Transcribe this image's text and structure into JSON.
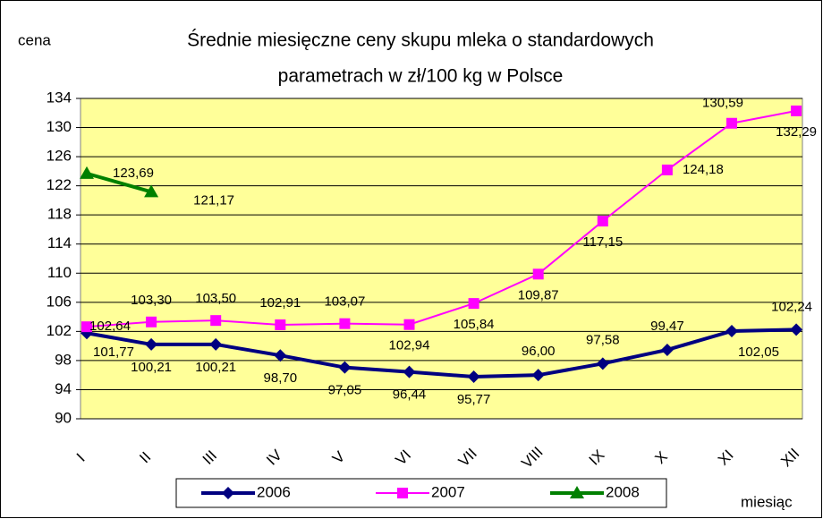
{
  "chart_data": {
    "type": "line",
    "title": "Średnie miesięczne ceny skupu mleka o standardowych",
    "subtitle": "parametrach w zł/100 kg w Polsce",
    "y_label": "cena",
    "x_label": "miesiąc",
    "categories": [
      "I",
      "II",
      "III",
      "IV",
      "V",
      "VI",
      "VII",
      "VIII",
      "IX",
      "X",
      "XI",
      "XII"
    ],
    "series": [
      {
        "name": "2006",
        "color": "#000080",
        "marker": "diamond",
        "values": [
          101.77,
          100.21,
          100.21,
          98.7,
          97.05,
          96.44,
          95.77,
          96.0,
          97.58,
          99.47,
          102.05,
          102.24
        ],
        "value_labels": [
          "101,77",
          "100,21",
          "100,21",
          "98,70",
          "97,05",
          "96,44",
          "95,77",
          "96,00",
          "97,58",
          "99,47",
          "102,05",
          "102,24"
        ]
      },
      {
        "name": "2007",
        "color": "#ff00ff",
        "marker": "square",
        "values": [
          102.64,
          103.3,
          103.5,
          102.91,
          103.07,
          102.94,
          105.84,
          109.87,
          117.15,
          124.18,
          130.59,
          132.29
        ],
        "value_labels": [
          "102,64",
          "103,30",
          "103,50",
          "102,91",
          "103,07",
          "102,94",
          "105,84",
          "109,87",
          "117,15",
          "124,18",
          "130,59",
          "132,29"
        ]
      },
      {
        "name": "2008",
        "color": "#008000",
        "marker": "triangle",
        "values": [
          123.69,
          121.17,
          null,
          null,
          null,
          null,
          null,
          null,
          null,
          null,
          null,
          null
        ],
        "value_labels": [
          "123,69",
          "121,17",
          null,
          null,
          null,
          null,
          null,
          null,
          null,
          null,
          null,
          null
        ]
      }
    ],
    "ylim": [
      90,
      134
    ],
    "yticks": [
      90,
      94,
      98,
      102,
      106,
      110,
      114,
      118,
      122,
      126,
      130,
      134
    ],
    "grid": true
  }
}
